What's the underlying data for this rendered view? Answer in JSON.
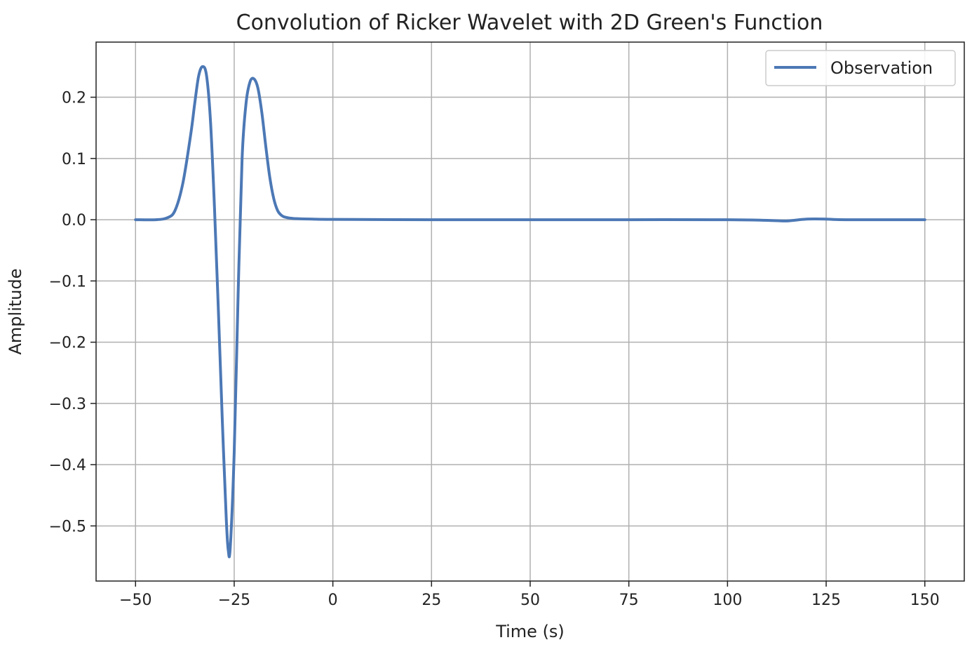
{
  "chart_data": {
    "type": "line",
    "title": "Convolution of Ricker Wavelet with 2D Green's Function",
    "xlabel": "Time (s)",
    "ylabel": "Amplitude",
    "xlim": [
      -60,
      160
    ],
    "ylim": [
      -0.59,
      0.29
    ],
    "xticks": [
      -50,
      -25,
      0,
      25,
      50,
      75,
      100,
      125,
      150
    ],
    "xtick_labels": [
      "−50",
      "−25",
      "0",
      "25",
      "50",
      "75",
      "100",
      "125",
      "150"
    ],
    "yticks": [
      0.2,
      0.1,
      0.0,
      -0.1,
      -0.2,
      -0.3,
      -0.4,
      -0.5
    ],
    "ytick_labels": [
      "0.2",
      "0.1",
      "0.0",
      "−0.1",
      "−0.2",
      "−0.3",
      "−0.4",
      "−0.5"
    ],
    "grid": true,
    "legend_position": "top-right",
    "series": [
      {
        "name": "Observation",
        "color": "#4c78b5",
        "x": [
          -50,
          -45,
          -42,
          -40,
          -38,
          -36,
          -35,
          -34,
          -33,
          -32,
          -31,
          -30,
          -29,
          -28,
          -27,
          -26.5,
          -26,
          -25,
          -24,
          -23,
          -22,
          -21,
          -20,
          -19,
          -18,
          -17,
          -16,
          -15,
          -14,
          -13,
          -12,
          -10,
          -5,
          0,
          25,
          50,
          75,
          100,
          110,
          115,
          120,
          125,
          130,
          150
        ],
        "y": [
          0.0,
          0.0,
          0.003,
          0.015,
          0.06,
          0.14,
          0.19,
          0.235,
          0.25,
          0.235,
          0.16,
          0.02,
          -0.15,
          -0.33,
          -0.49,
          -0.54,
          -0.535,
          -0.38,
          -0.12,
          0.1,
          0.19,
          0.225,
          0.23,
          0.215,
          0.175,
          0.12,
          0.07,
          0.035,
          0.015,
          0.007,
          0.004,
          0.002,
          0.001,
          0.0005,
          0.0,
          0.0,
          0.0,
          0.0,
          -0.001,
          -0.002,
          0.001,
          0.001,
          0.0,
          0.0
        ]
      }
    ]
  }
}
